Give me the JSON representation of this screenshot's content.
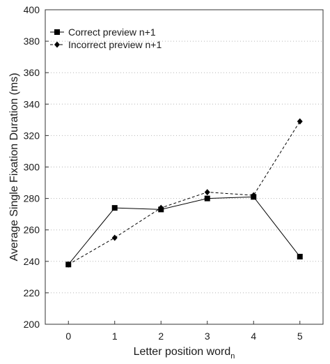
{
  "chart_data": {
    "type": "line",
    "xlabel": "Letter position word",
    "xlabel_sub": "n",
    "ylabel": "Average Single Fixation Duration (ms)",
    "x": [
      0,
      1,
      2,
      3,
      4,
      5
    ],
    "xlim": [
      -0.5,
      5.5
    ],
    "ylim": [
      200,
      400
    ],
    "yticks": [
      200,
      220,
      240,
      260,
      280,
      300,
      320,
      340,
      360,
      380,
      400
    ],
    "xticks": [
      0,
      1,
      2,
      3,
      4,
      5
    ],
    "grid": "horizontal dotted",
    "legend_position": "top-left",
    "series": [
      {
        "name": "Correct preview n+1",
        "values": [
          238,
          274,
          273,
          280,
          281,
          243
        ],
        "line_style": "solid",
        "marker": "square",
        "color": "#000000"
      },
      {
        "name": "Incorrect preview n+1",
        "values": [
          238,
          255,
          274,
          284,
          282,
          329
        ],
        "line_style": "dashed",
        "marker": "diamond",
        "color": "#000000"
      }
    ]
  }
}
